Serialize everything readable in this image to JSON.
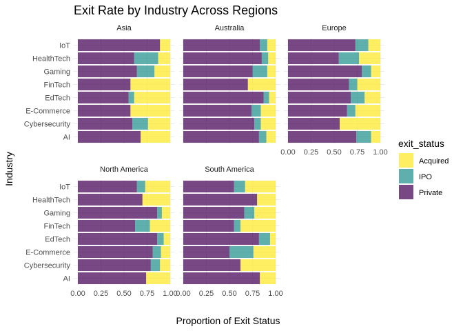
{
  "chart_data": {
    "type": "bar",
    "orientation": "horizontal",
    "stacked": true,
    "faceted": true,
    "title": "Exit Rate by Industry Across Regions",
    "xlabel": "Proportion of Exit Status",
    "ylabel": "Industry",
    "xlim": [
      0,
      1
    ],
    "xticks": [
      "0.00",
      "0.25",
      "0.50",
      "0.75",
      "1.00"
    ],
    "categories": [
      "IoT",
      "HealthTech",
      "Gaming",
      "FinTech",
      "EdTech",
      "E-Commerce",
      "Cybersecurity",
      "AI"
    ],
    "stack_order": [
      "Private",
      "IPO",
      "Acquired"
    ],
    "legend": {
      "title": "exit_status",
      "position": "right",
      "items": [
        {
          "name": "Acquired",
          "color": "#FDE725"
        },
        {
          "name": "IPO",
          "color": "#21908C"
        },
        {
          "name": "Private",
          "color": "#440154"
        }
      ]
    },
    "grid": true,
    "facets": [
      {
        "name": "Asia",
        "series": [
          {
            "name": "Private",
            "values": [
              0.89,
              0.61,
              0.64,
              0.57,
              0.55,
              0.57,
              0.59,
              0.68
            ]
          },
          {
            "name": "IPO",
            "values": [
              0.0,
              0.26,
              0.19,
              0.0,
              0.06,
              0.0,
              0.17,
              0.0
            ]
          },
          {
            "name": "Acquired",
            "values": [
              0.11,
              0.13,
              0.17,
              0.43,
              0.39,
              0.43,
              0.24,
              0.32
            ]
          }
        ]
      },
      {
        "name": "Australia",
        "series": [
          {
            "name": "Private",
            "values": [
              0.83,
              0.85,
              0.75,
              0.7,
              0.87,
              0.74,
              0.77,
              0.82
            ]
          },
          {
            "name": "IPO",
            "values": [
              0.08,
              0.07,
              0.16,
              0.0,
              0.06,
              0.1,
              0.07,
              0.08
            ]
          },
          {
            "name": "Acquired",
            "values": [
              0.09,
              0.08,
              0.09,
              0.3,
              0.07,
              0.16,
              0.16,
              0.1
            ]
          }
        ]
      },
      {
        "name": "Europe",
        "series": [
          {
            "name": "Private",
            "values": [
              0.73,
              0.55,
              0.8,
              0.66,
              0.68,
              0.64,
              0.56,
              0.74
            ]
          },
          {
            "name": "IPO",
            "values": [
              0.14,
              0.22,
              0.1,
              0.09,
              0.15,
              0.09,
              0.0,
              0.16
            ]
          },
          {
            "name": "Acquired",
            "values": [
              0.13,
              0.23,
              0.1,
              0.25,
              0.17,
              0.27,
              0.44,
              0.1
            ]
          }
        ]
      },
      {
        "name": "North America",
        "series": [
          {
            "name": "Private",
            "values": [
              0.64,
              0.7,
              0.86,
              0.62,
              0.86,
              0.81,
              0.79,
              0.74
            ]
          },
          {
            "name": "IPO",
            "values": [
              0.09,
              0.0,
              0.05,
              0.16,
              0.07,
              0.09,
              0.1,
              0.0
            ]
          },
          {
            "name": "Acquired",
            "values": [
              0.27,
              0.3,
              0.09,
              0.22,
              0.07,
              0.1,
              0.11,
              0.26
            ]
          }
        ]
      },
      {
        "name": "South America",
        "series": [
          {
            "name": "Private",
            "values": [
              0.55,
              0.8,
              0.66,
              0.55,
              0.82,
              0.5,
              0.62,
              0.83
            ]
          },
          {
            "name": "IPO",
            "values": [
              0.12,
              0.0,
              0.11,
              0.07,
              0.12,
              0.26,
              0.0,
              0.0
            ]
          },
          {
            "name": "Acquired",
            "values": [
              0.33,
              0.2,
              0.23,
              0.38,
              0.06,
              0.24,
              0.38,
              0.17
            ]
          }
        ]
      }
    ]
  }
}
